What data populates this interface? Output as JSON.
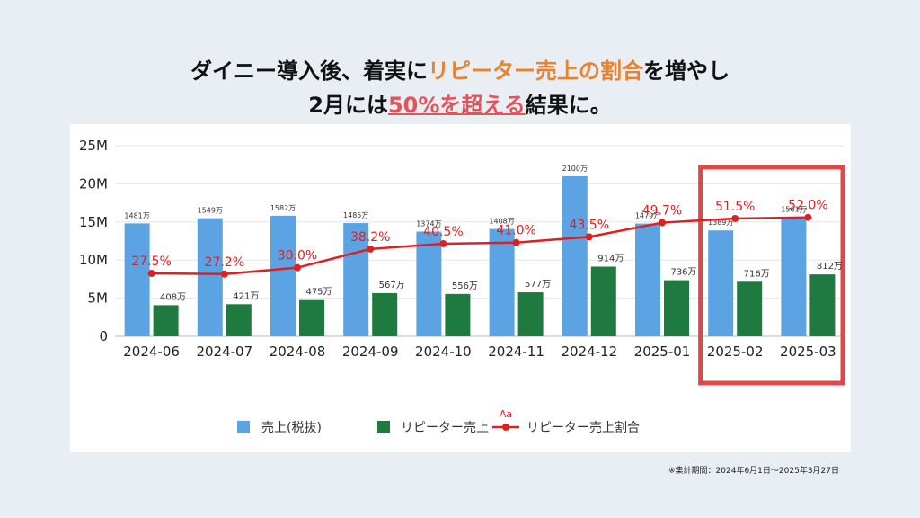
{
  "headline": {
    "line1_a": "ダイニー導入後、着実に",
    "line1_highlight": "リピーター売上の割合",
    "line1_b": "を増やし",
    "line2_a": "2月には",
    "line2_highlight": "50%を超える",
    "line2_b": "結果に。"
  },
  "colors": {
    "sales": "#5ba3e3",
    "repeat": "#1f7a3f",
    "ratio": "#e02020",
    "highlight_box": "#e04848"
  },
  "chart_data": {
    "type": "bar",
    "categories": [
      "2024-06",
      "2024-07",
      "2024-08",
      "2024-09",
      "2024-10",
      "2024-11",
      "2024-12",
      "2025-01",
      "2025-02",
      "2025-03"
    ],
    "y_ticks": [
      "0",
      "5M",
      "10M",
      "15M",
      "20M",
      "25M"
    ],
    "ylim": [
      0,
      25000000
    ],
    "grid": true,
    "legend_position": "bottom",
    "series": [
      {
        "name": "売上(税抜)",
        "type": "bar",
        "values": [
          14810000,
          15490000,
          15820000,
          14850000,
          13740000,
          14080000,
          21000000,
          14790000,
          13890000,
          15610000
        ],
        "labels": [
          "1481万",
          "1549万",
          "1582万",
          "1485万",
          "1374万",
          "1408万",
          "2100万",
          "1479万",
          "1389万",
          "1561万"
        ]
      },
      {
        "name": "リピーター売上",
        "type": "bar",
        "values": [
          4080000,
          4210000,
          4750000,
          5670000,
          5560000,
          5770000,
          9140000,
          7360000,
          7160000,
          8120000
        ],
        "labels": [
          "408万",
          "421万",
          "475万",
          "567万",
          "556万",
          "577万",
          "914万",
          "736万",
          "716万",
          "812万"
        ]
      },
      {
        "name": "リピーター売上割合",
        "type": "line",
        "values": [
          27.5,
          27.2,
          30.0,
          38.2,
          40.5,
          41.0,
          43.5,
          49.7,
          51.5,
          52.0
        ],
        "labels": [
          "27.5%",
          "27.2%",
          "30.0%",
          "38.2%",
          "40.5%",
          "41.0%",
          "43.5%",
          "49.7%",
          "51.5%",
          "52.0%"
        ]
      }
    ],
    "legend_badge": "Aa",
    "highlighted_categories": [
      "2025-02",
      "2025-03"
    ]
  },
  "footnote": "※集計期間：2024年6月1日〜2025年3月27日"
}
